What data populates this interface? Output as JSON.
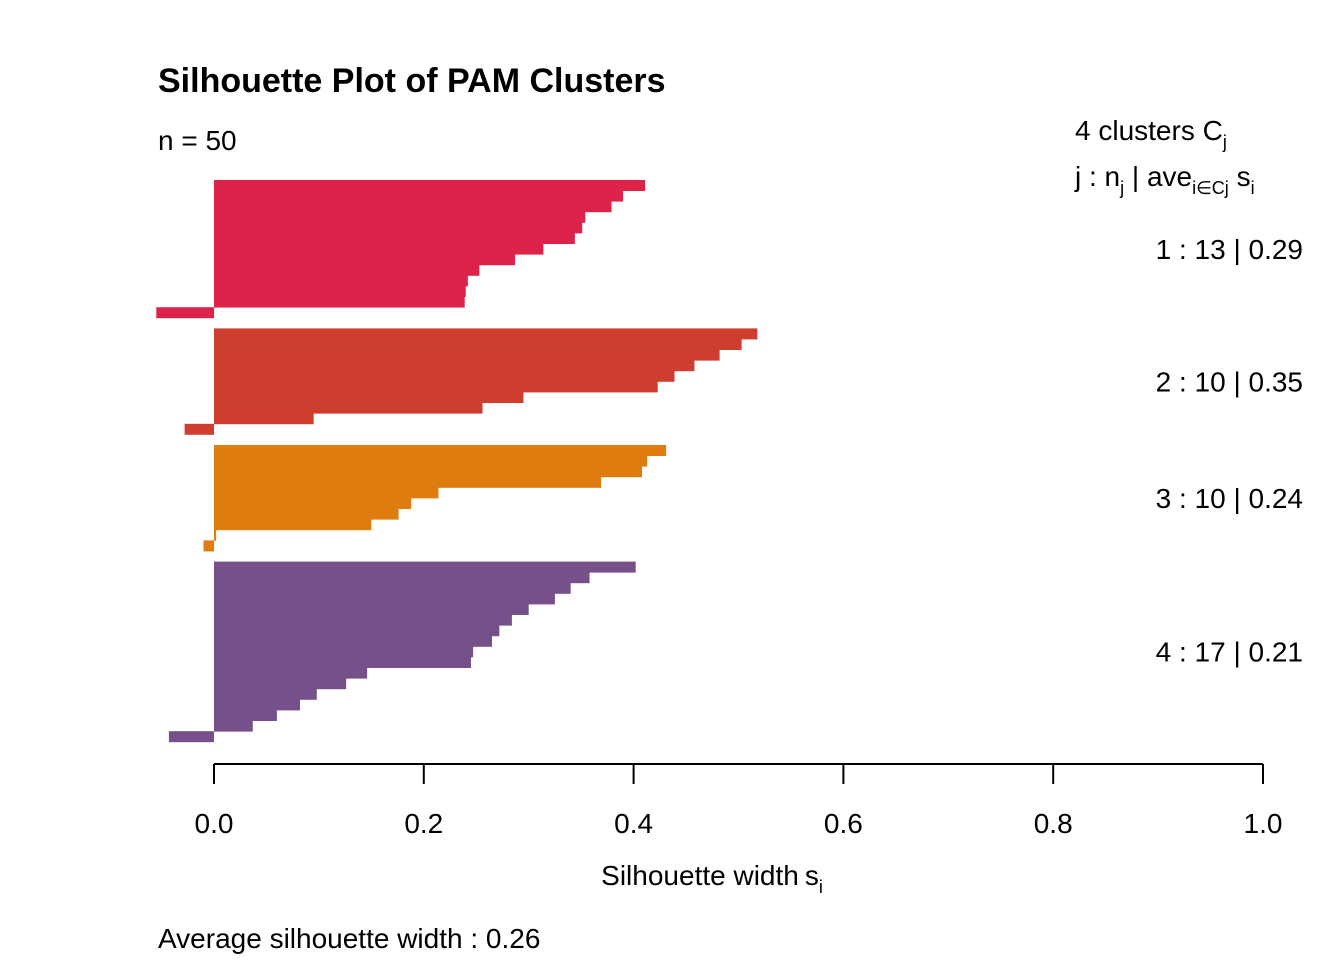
{
  "chart_data": {
    "type": "bar",
    "orientation": "horizontal",
    "title": "Silhouette Plot of PAM Clusters",
    "n_label": "n = 50",
    "xlabel": "Silhouette width",
    "xlabel_sub": "i",
    "xlim": [
      0,
      1.0
    ],
    "x_ticks": [
      "0.0",
      "0.2",
      "0.4",
      "0.6",
      "0.8",
      "1.0"
    ],
    "x_tick_values": [
      0,
      0.2,
      0.4,
      0.6,
      0.8,
      1.0
    ],
    "footer": "Average silhouette width :  0.26",
    "legend": {
      "header1": {
        "prefix": "4  clusters  C",
        "sub": "j"
      },
      "header2": {
        "j": "j :  n",
        "j_sub": "j",
        "mid": " | ave",
        "mid_sub": "i∈Cj",
        "end": "  s",
        "end_sub": "i"
      }
    },
    "clusters": [
      {
        "id": 1,
        "label": "1 :   13  |  0.29",
        "n": 13,
        "avg": 0.29,
        "color": "#DC244B",
        "values": [
          0.411,
          0.39,
          0.379,
          0.354,
          0.351,
          0.344,
          0.314,
          0.287,
          0.253,
          0.242,
          0.24,
          0.239,
          -0.055
        ]
      },
      {
        "id": 2,
        "label": "2 :   10  |  0.35",
        "n": 10,
        "avg": 0.35,
        "color": "#CD3E2F",
        "values": [
          0.518,
          0.503,
          0.482,
          0.458,
          0.439,
          0.423,
          0.295,
          0.256,
          0.095,
          -0.028
        ]
      },
      {
        "id": 3,
        "label": "3 :   10  |  0.24",
        "n": 10,
        "avg": 0.24,
        "color": "#DF7C0F",
        "values": [
          0.431,
          0.413,
          0.408,
          0.369,
          0.214,
          0.188,
          0.176,
          0.15,
          0.002,
          -0.01
        ]
      },
      {
        "id": 4,
        "label": "4 :   17  |  0.21",
        "n": 17,
        "avg": 0.21,
        "color": "#765189",
        "values": [
          0.402,
          0.358,
          0.34,
          0.325,
          0.3,
          0.284,
          0.272,
          0.265,
          0.247,
          0.245,
          0.146,
          0.126,
          0.098,
          0.082,
          0.06,
          0.037,
          -0.043
        ]
      }
    ]
  }
}
